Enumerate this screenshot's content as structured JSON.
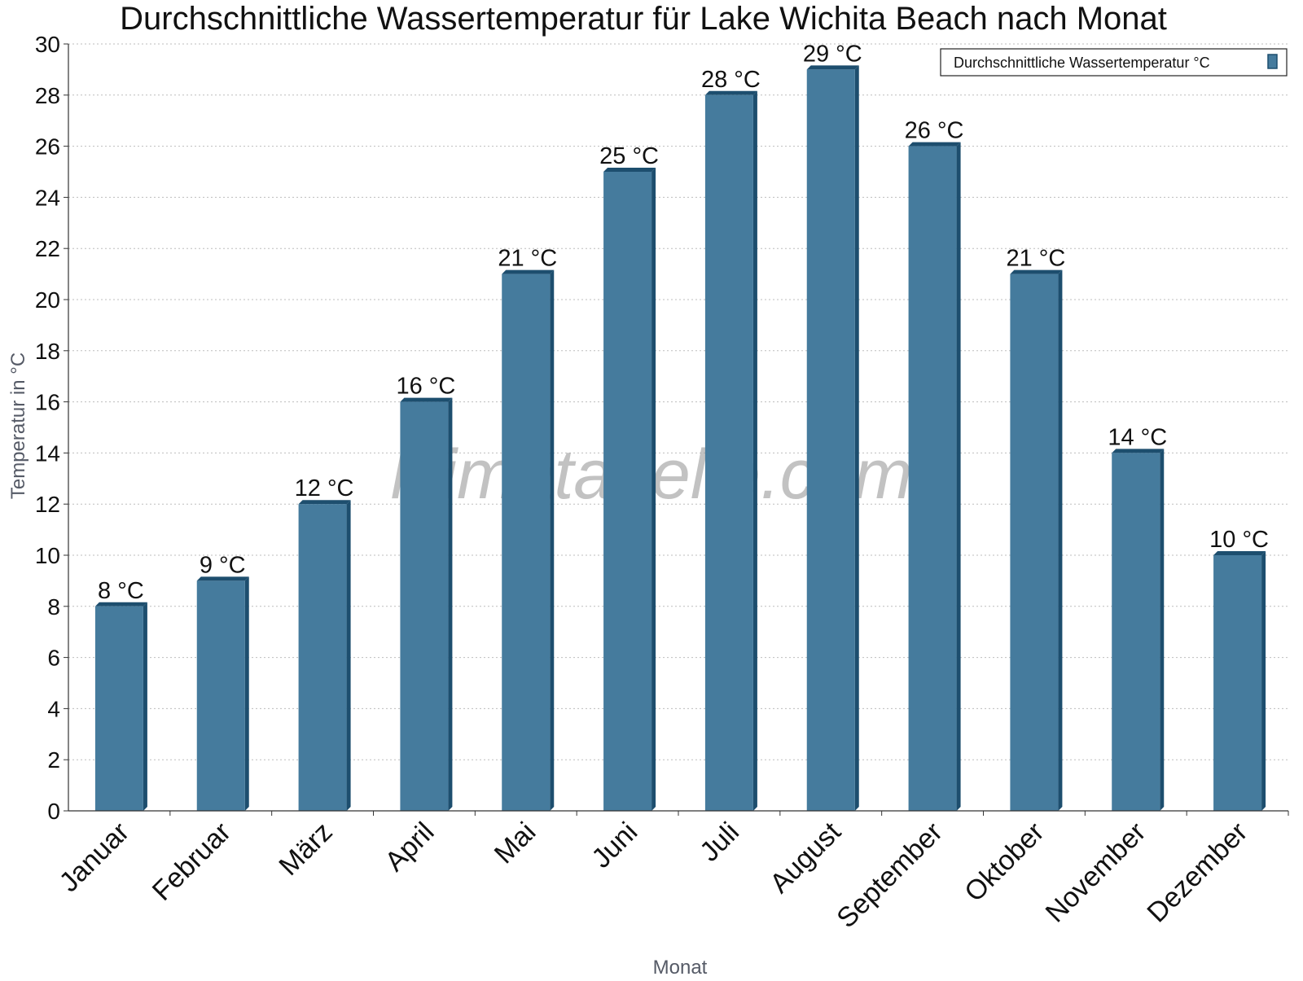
{
  "chart_data": {
    "type": "bar",
    "title": "Durchschnittliche Wassertemperatur für Lake Wichita Beach nach Monat",
    "xlabel": "Monat",
    "ylabel": "Temperatur in °C",
    "categories": [
      "Januar",
      "Februar",
      "März",
      "April",
      "Mai",
      "Juni",
      "Juli",
      "August",
      "September",
      "Oktober",
      "November",
      "Dezember"
    ],
    "series": [
      {
        "name": "Durchschnittliche Wassertemperatur °C",
        "values": [
          8,
          9,
          12,
          16,
          21,
          25,
          28,
          29,
          26,
          21,
          14,
          10
        ],
        "labels": [
          "8 °C",
          "9 °C",
          "12 °C",
          "16 °C",
          "21 °C",
          "25 °C",
          "28 °C",
          "29 °C",
          "26 °C",
          "21 °C",
          "14 °C",
          "10 °C"
        ],
        "color": "#457b9d",
        "edge_color": "#1d4e6e"
      }
    ],
    "ylim": [
      0,
      30
    ],
    "yticks": [
      0,
      2,
      4,
      6,
      8,
      10,
      12,
      14,
      16,
      18,
      20,
      22,
      24,
      26,
      28,
      30
    ],
    "grid": true,
    "legend_position": "top-right"
  },
  "watermark": "klimatabelle.com"
}
